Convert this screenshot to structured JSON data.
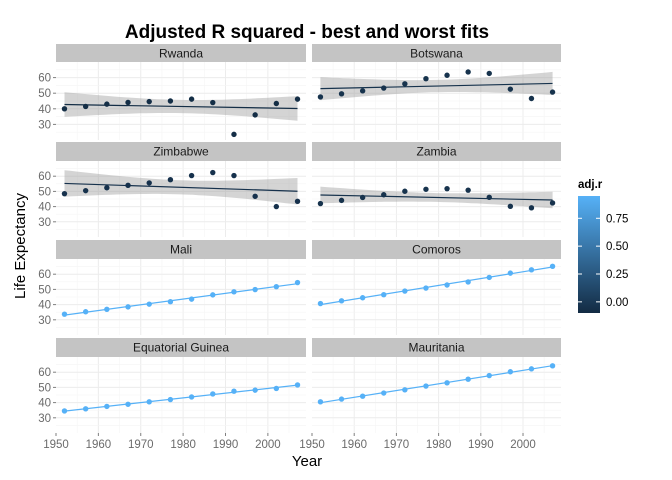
{
  "chart_data": {
    "type": "scatter",
    "title": "Adjusted R squared - best and worst fits",
    "xlabel": "Year",
    "ylabel": "Life Expectancy",
    "xlim": [
      1950,
      2009
    ],
    "ylim": [
      20,
      70
    ],
    "x_ticks": [
      1950,
      1960,
      1970,
      1980,
      1990,
      2000
    ],
    "y_ticks": [
      30,
      40,
      50,
      60
    ],
    "x": [
      1952,
      1957,
      1962,
      1967,
      1972,
      1977,
      1982,
      1987,
      1992,
      1997,
      2002,
      2007
    ],
    "grid": true,
    "legend": {
      "title": "adj.r",
      "position": "right",
      "type": "colorbar",
      "low_color": "#132B43",
      "high_color": "#56B1F7",
      "ticks": [
        "0.75",
        "0.50",
        "0.25",
        "0.00"
      ],
      "tick_values": [
        0.75,
        0.5,
        0.25,
        0.0
      ],
      "range": [
        -0.1,
        0.95
      ]
    },
    "panels": [
      {
        "name": "Rwanda",
        "adj_r": -0.08,
        "ribbon": true,
        "values": [
          40.0,
          41.5,
          43.0,
          44.1,
          44.6,
          45.0,
          46.2,
          44.0,
          23.6,
          36.1,
          43.4,
          46.2
        ]
      },
      {
        "name": "Botswana",
        "adj_r": -0.04,
        "ribbon": true,
        "values": [
          47.6,
          49.6,
          51.5,
          53.3,
          56.0,
          59.3,
          61.5,
          63.6,
          62.7,
          52.6,
          46.6,
          50.7
        ]
      },
      {
        "name": "Zimbabwe",
        "adj_r": -0.05,
        "ribbon": true,
        "values": [
          48.5,
          50.5,
          52.4,
          54.0,
          55.6,
          57.7,
          60.4,
          62.4,
          60.4,
          46.8,
          40.0,
          43.5
        ]
      },
      {
        "name": "Zambia",
        "adj_r": -0.04,
        "ribbon": true,
        "values": [
          42.0,
          44.1,
          46.0,
          47.8,
          50.1,
          51.4,
          51.8,
          50.8,
          46.1,
          40.2,
          39.2,
          42.4
        ]
      },
      {
        "name": "Mali",
        "adj_r": 0.95,
        "ribbon": false,
        "values": [
          33.7,
          35.3,
          36.9,
          38.5,
          40.3,
          41.9,
          43.6,
          46.4,
          48.4,
          49.9,
          51.8,
          54.5
        ]
      },
      {
        "name": "Comoros",
        "adj_r": 0.95,
        "ribbon": false,
        "values": [
          40.7,
          42.5,
          44.5,
          46.5,
          48.9,
          50.9,
          52.9,
          54.9,
          57.9,
          60.7,
          62.9,
          65.2
        ]
      },
      {
        "name": "Equatorial Guinea",
        "adj_r": 0.95,
        "ribbon": false,
        "values": [
          34.5,
          35.9,
          37.5,
          38.9,
          40.5,
          42.0,
          43.7,
          45.7,
          47.5,
          48.2,
          49.3,
          51.6
        ]
      },
      {
        "name": "Mauritania",
        "adj_r": 0.95,
        "ribbon": false,
        "values": [
          40.5,
          42.3,
          44.2,
          46.3,
          48.4,
          50.9,
          53.0,
          55.4,
          57.8,
          60.3,
          62.2,
          64.2
        ]
      }
    ]
  }
}
